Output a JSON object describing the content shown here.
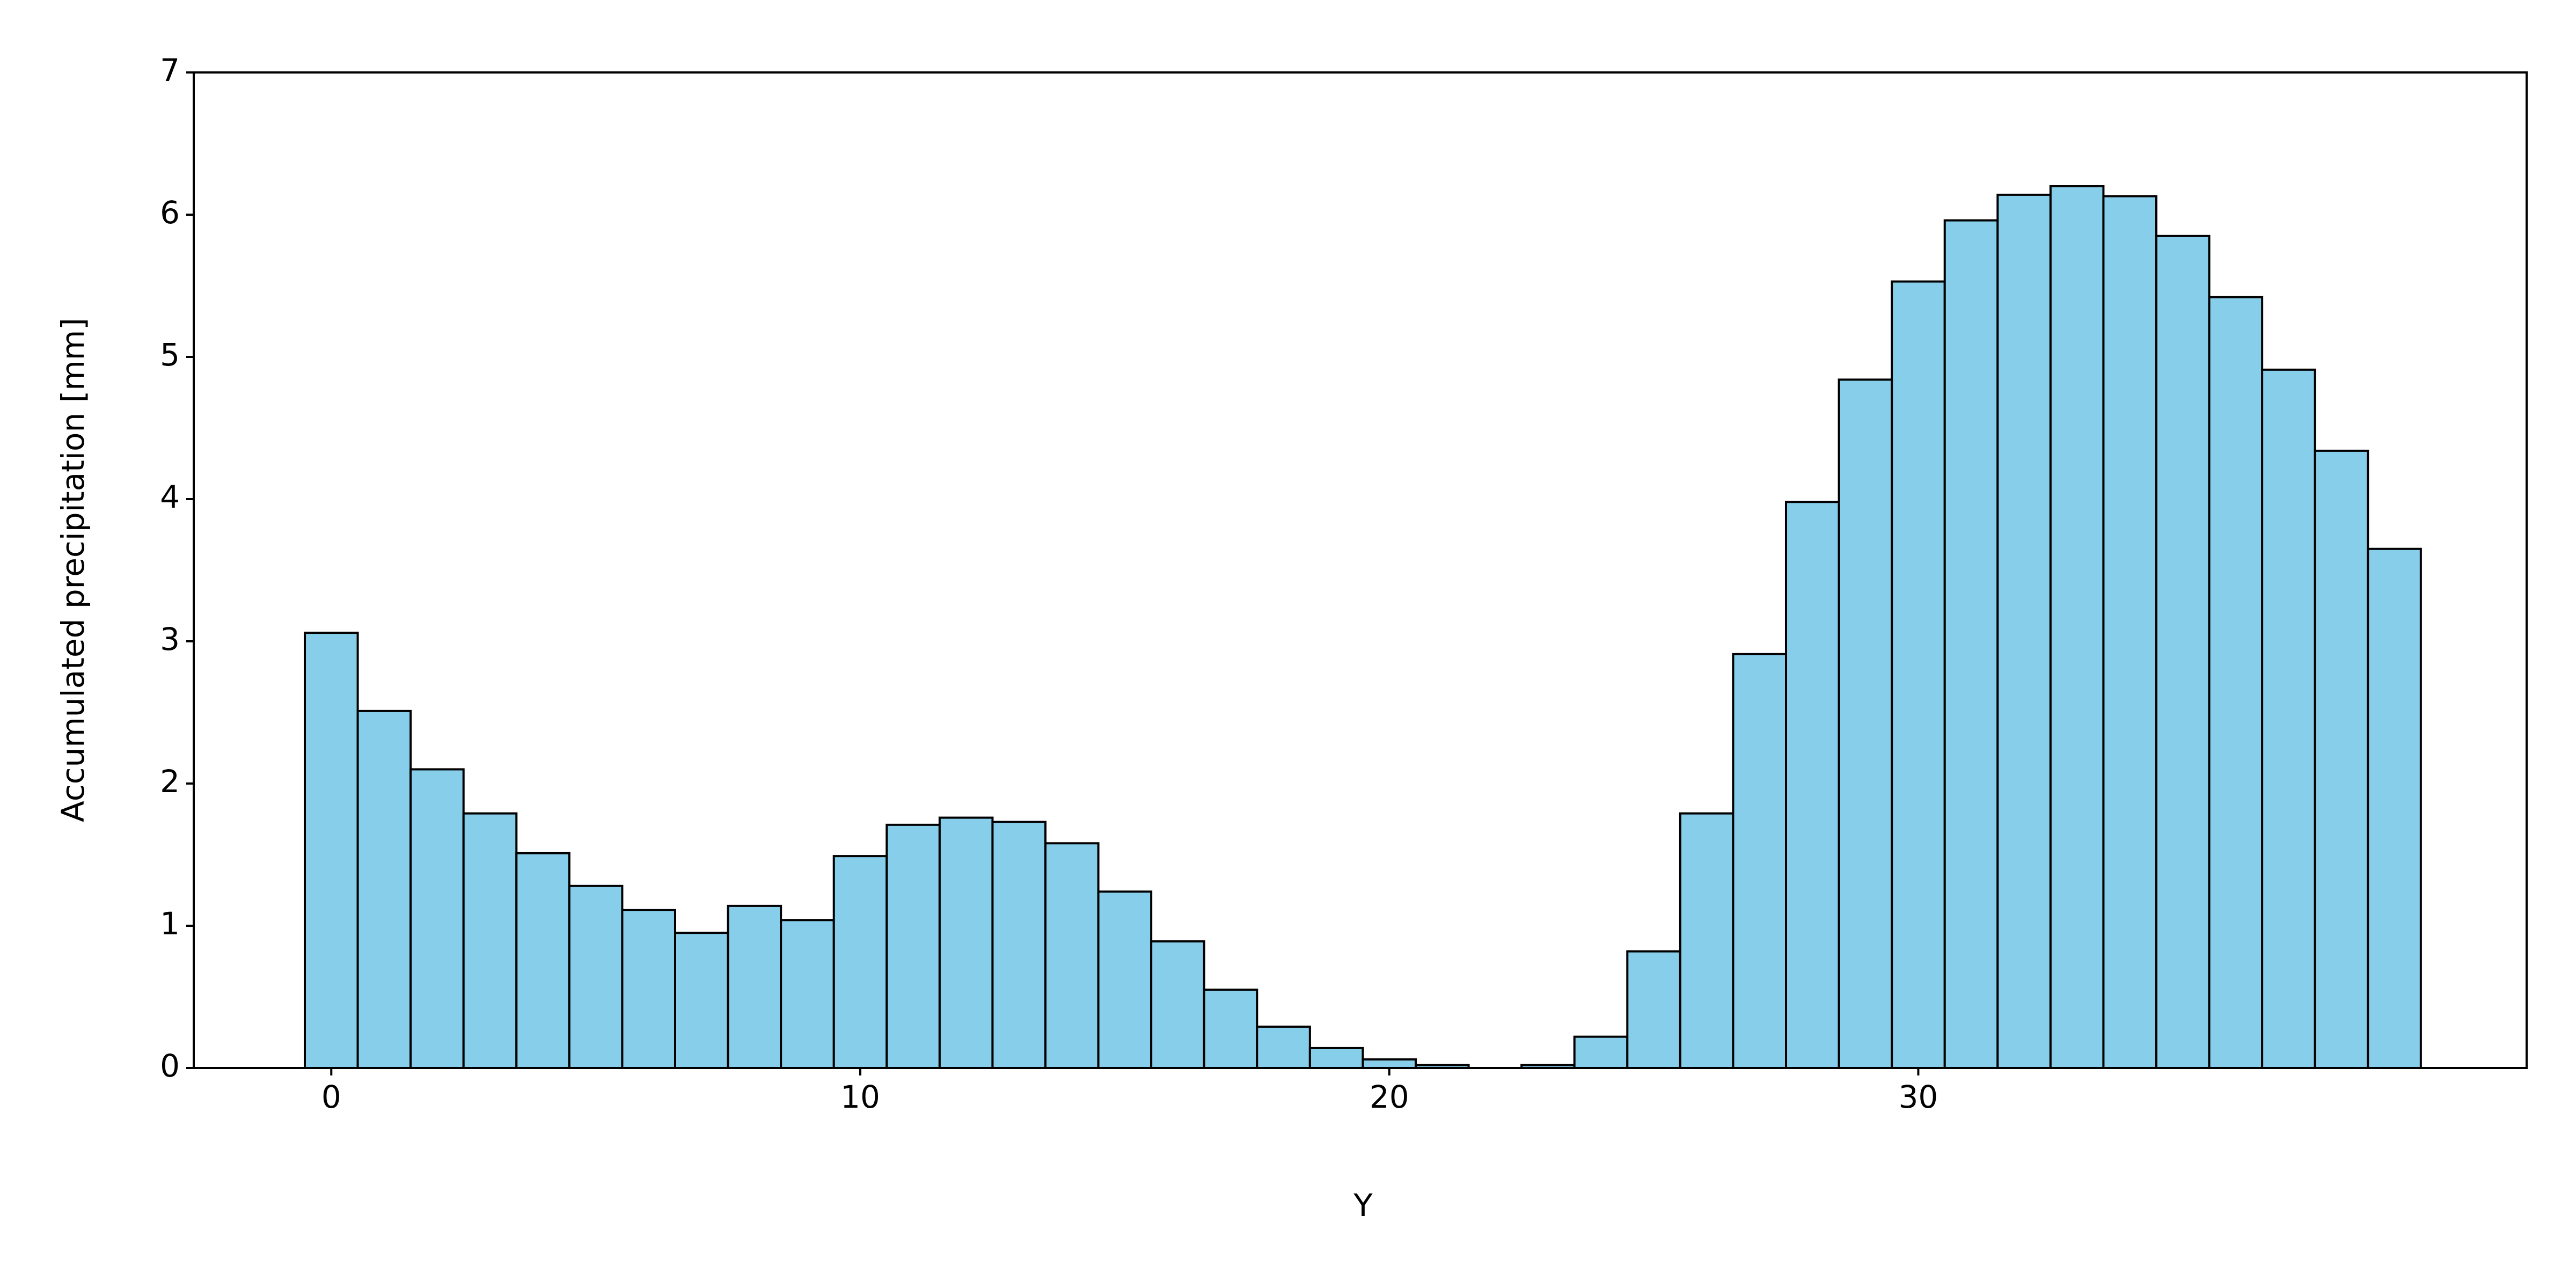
{
  "chart_data": {
    "type": "bar",
    "xlabel": "Y",
    "ylabel": "Accumulated precipitation [mm]",
    "x": [
      0,
      1,
      2,
      3,
      4,
      5,
      6,
      7,
      8,
      9,
      10,
      11,
      12,
      13,
      14,
      15,
      16,
      17,
      18,
      19,
      20,
      21,
      22,
      23,
      24,
      25,
      26,
      27,
      28,
      29,
      30,
      31,
      32,
      33,
      34,
      35,
      36,
      37,
      38,
      39
    ],
    "values": [
      3.06,
      2.51,
      2.1,
      1.79,
      1.51,
      1.28,
      1.11,
      0.95,
      1.14,
      1.04,
      1.49,
      1.71,
      1.76,
      1.73,
      1.58,
      1.24,
      0.89,
      0.55,
      0.29,
      0.14,
      0.06,
      0.02,
      0,
      0.02,
      0.22,
      0.82,
      1.79,
      2.91,
      3.98,
      4.84,
      5.53,
      5.96,
      6.14,
      6.2,
      6.13,
      5.85,
      5.42,
      4.91,
      4.34,
      3.65
    ],
    "color": "#87ceeb",
    "edgecolor": "#000000",
    "xlim": [
      -2.6,
      41.5
    ],
    "xticks": [
      0,
      10,
      20,
      30
    ],
    "ylim": [
      0,
      7
    ],
    "yticks": [
      0,
      1,
      2,
      3,
      4,
      5,
      6,
      7
    ]
  }
}
